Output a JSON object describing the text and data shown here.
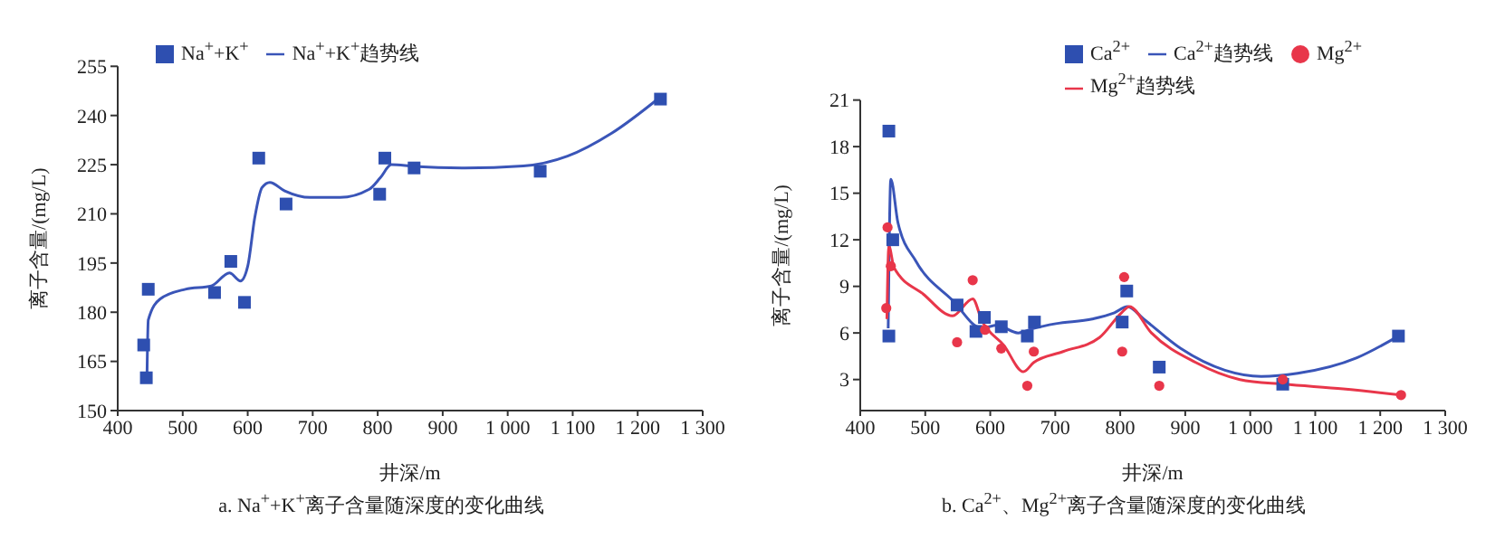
{
  "chart_data": [
    {
      "type": "line",
      "title": "a. Na$^{+}$+K$^{+}$离子含量随深度的变化曲线",
      "xlabel": "井深/m",
      "ylabel": "离子含量/(mg/L)",
      "xlim": [
        400,
        1300
      ],
      "xticks": [
        400,
        500,
        600,
        700,
        800,
        900,
        {
          "value": 1000,
          "label": "1 000"
        },
        {
          "value": 1100,
          "label": "1 100"
        },
        {
          "value": 1200,
          "label": "1 200"
        },
        {
          "value": 1300,
          "label": "1 300"
        }
      ],
      "ylim": [
        150,
        255
      ],
      "yticks": [
        150,
        165,
        180,
        195,
        210,
        225,
        240,
        255
      ],
      "grid": false,
      "legend": "top left",
      "series": [
        {
          "name": "Na$^{+}$+K$^{+}$",
          "type": "scatter",
          "marker": "square",
          "color": "#2e4fb0",
          "x": [
            440,
            444,
            447,
            549,
            574,
            595,
            617,
            659,
            803,
            811,
            856,
            1050,
            1235
          ],
          "values": [
            170,
            160,
            187,
            186,
            195.5,
            183,
            227,
            213,
            216,
            227,
            224,
            223,
            245
          ]
        },
        {
          "name": "Na$^{+}$+K$^{+}$趋势线",
          "marker": "none",
          "color": "#3a55b8",
          "x": [
            445,
            447,
            465,
            504,
            544,
            572,
            589,
            600,
            611,
            622,
            634,
            657,
            696,
            742,
            787,
            804,
            821,
            855,
            934,
            1024,
            1092,
            1160,
            1234
          ],
          "values": [
            160,
            177.6,
            184,
            187,
            188,
            192,
            189.5,
            194,
            209,
            218,
            219.6,
            217,
            215,
            215,
            217.5,
            221,
            225,
            224.5,
            224,
            224.6,
            227.6,
            234.6,
            245.5
          ]
        }
      ]
    },
    {
      "type": "line",
      "title": "b. Ca$^{2+}$、Mg$^{2+}$离子含量随深度的变化曲线",
      "xlabel": "井深/m",
      "ylabel": "离子含量/(mg/L)",
      "xlim": [
        400,
        1300
      ],
      "xticks": [
        400,
        500,
        600,
        700,
        800,
        900,
        {
          "value": 1000,
          "label": "1 000"
        },
        {
          "value": 1100,
          "label": "1 100"
        },
        {
          "value": 1200,
          "label": "1 200"
        },
        {
          "value": 1300,
          "label": "1 300"
        }
      ],
      "ylim": [
        1,
        21
      ],
      "yticks": [
        3,
        6,
        9,
        12,
        15,
        18,
        21
      ],
      "grid": false,
      "legend": "top right",
      "series": [
        {
          "name": "Ca$^{2+}$",
          "type": "scatter",
          "marker": "square",
          "color": "#2e4fb0",
          "x": [
            444,
            444,
            450,
            549,
            578,
            591,
            617,
            657,
            668,
            803,
            810,
            860,
            1050,
            1228
          ],
          "values": [
            19,
            5.8,
            12,
            7.8,
            6.1,
            7,
            6.4,
            5.8,
            6.7,
            6.7,
            8.7,
            3.8,
            2.7,
            5.8
          ]
        },
        {
          "name": "Ca$^{2+}$趋势线",
          "marker": "none",
          "color": "#3a55b8",
          "x": [
            443,
            447,
            458,
            486,
            542,
            587,
            610,
            643,
            667,
            701,
            757,
            791,
            811,
            836,
            893,
            961,
            1017,
            1073,
            1164,
            1228
          ],
          "values": [
            6.3,
            15.9,
            13.1,
            10.6,
            8.1,
            6.3,
            6.5,
            6,
            6.3,
            6.6,
            6.9,
            7.3,
            7.7,
            6.9,
            5,
            3.6,
            3.2,
            3.4,
            4.4,
            5.8
          ]
        },
        {
          "name": "Mg$^{2+}$",
          "type": "scatter",
          "marker": "circle",
          "color": "#e8364a",
          "x": [
            440,
            442,
            447,
            549,
            573,
            592,
            617,
            657,
            667,
            803,
            806,
            860,
            1050,
            1232
          ],
          "values": [
            7.6,
            12.8,
            10.3,
            5.4,
            9.4,
            6.2,
            5,
            2.6,
            4.8,
            4.8,
            9.6,
            2.6,
            3,
            2
          ]
        },
        {
          "name": "Mg$^{2+}$趋势线",
          "marker": "none",
          "color": "#e8364a",
          "x": [
            441,
            444,
            452,
            497,
            542,
            573,
            587,
            621,
            651,
            667,
            712,
            768,
            802,
            814,
            848,
            916,
            984,
            1052,
            1143,
            1232
          ],
          "values": [
            6.9,
            11.6,
            10.2,
            8.5,
            7.1,
            8.2,
            6.8,
            5.2,
            3.5,
            4.1,
            4.8,
            5.7,
            7.3,
            7.7,
            6,
            4.1,
            3,
            2.7,
            2.4,
            2
          ]
        }
      ]
    }
  ]
}
